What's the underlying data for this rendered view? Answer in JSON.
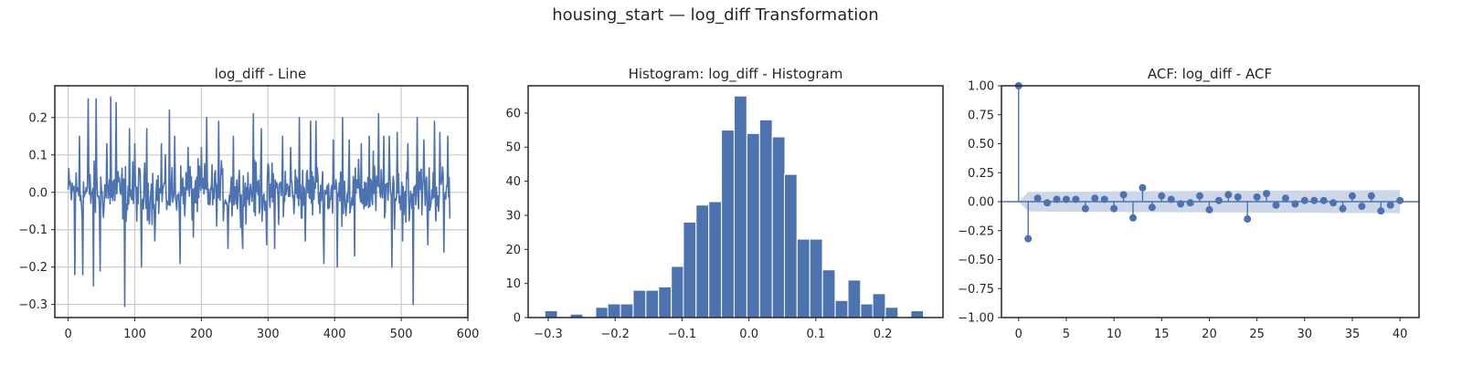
{
  "figure": {
    "title": "housing_start — log_diff Transformation"
  },
  "chart_data": [
    {
      "type": "line",
      "title": "log_diff - Line",
      "xlim": [
        -20,
        600
      ],
      "ylim": [
        -0.335,
        0.285
      ],
      "xticks": [
        0,
        100,
        200,
        300,
        400,
        500,
        600
      ],
      "yticks": [
        -0.3,
        -0.2,
        -0.1,
        0.0,
        0.1,
        0.2
      ],
      "ytick_labels": [
        "−0.3",
        "−0.2",
        "−0.1",
        "0.0",
        "0.1",
        "0.2"
      ],
      "grid": true,
      "series": [
        {
          "color": "#4c72b0",
          "n": 574,
          "spikes": [
            [
              10,
              -0.22
            ],
            [
              17,
              0.15
            ],
            [
              22,
              -0.22
            ],
            [
              30,
              0.25
            ],
            [
              38,
              -0.25
            ],
            [
              42,
              0.25
            ],
            [
              48,
              -0.21
            ],
            [
              58,
              0.13
            ],
            [
              64,
              0.255
            ],
            [
              72,
              0.24
            ],
            [
              85,
              -0.305
            ],
            [
              92,
              0.17
            ],
            [
              100,
              0.13
            ],
            [
              110,
              -0.2
            ],
            [
              118,
              0.17
            ],
            [
              130,
              -0.13
            ],
            [
              140,
              0.13
            ],
            [
              152,
              0.22
            ],
            [
              160,
              0.15
            ],
            [
              168,
              -0.19
            ],
            [
              180,
              0.12
            ],
            [
              188,
              -0.12
            ],
            [
              200,
              0.12
            ],
            [
              208,
              0.2
            ],
            [
              226,
              0.19
            ],
            [
              240,
              -0.15
            ],
            [
              248,
              0.15
            ],
            [
              262,
              -0.15
            ],
            [
              278,
              0.21
            ],
            [
              290,
              0.17
            ],
            [
              298,
              -0.14
            ],
            [
              310,
              -0.15
            ],
            [
              322,
              0.15
            ],
            [
              334,
              0.12
            ],
            [
              347,
              0.2
            ],
            [
              356,
              -0.13
            ],
            [
              364,
              0.19
            ],
            [
              372,
              0.19
            ],
            [
              384,
              -0.19
            ],
            [
              398,
              0.14
            ],
            [
              404,
              -0.2
            ],
            [
              412,
              0.2
            ],
            [
              422,
              0.14
            ],
            [
              430,
              -0.17
            ],
            [
              440,
              0.13
            ],
            [
              452,
              0.15
            ],
            [
              458,
              0.11
            ],
            [
              466,
              0.21
            ],
            [
              474,
              0.15
            ],
            [
              482,
              0.15
            ],
            [
              486,
              -0.2
            ],
            [
              494,
              0.16
            ],
            [
              502,
              -0.13
            ],
            [
              510,
              0.13
            ],
            [
              518,
              -0.3
            ],
            [
              524,
              0.2
            ],
            [
              534,
              0.14
            ],
            [
              540,
              -0.14
            ],
            [
              550,
              0.19
            ],
            [
              558,
              0.16
            ],
            [
              564,
              -0.16
            ],
            [
              570,
              0.15
            ]
          ]
        }
      ]
    },
    {
      "type": "bar",
      "title": "Histogram: log_diff - Histogram",
      "xlim": [
        -0.33,
        0.29
      ],
      "ylim": [
        0,
        68
      ],
      "xticks": [
        -0.3,
        -0.2,
        -0.1,
        0.0,
        0.1,
        0.2
      ],
      "xtick_labels": [
        "−0.3",
        "−0.2",
        "−0.1",
        "0.0",
        "0.1",
        "0.2"
      ],
      "yticks": [
        0,
        10,
        20,
        30,
        40,
        50,
        60
      ],
      "bin_width": 0.0188,
      "bins": [
        [
          -0.305,
          2
        ],
        [
          -0.267,
          1
        ],
        [
          -0.229,
          3
        ],
        [
          -0.211,
          4
        ],
        [
          -0.192,
          4
        ],
        [
          -0.173,
          8
        ],
        [
          -0.154,
          8
        ],
        [
          -0.135,
          9
        ],
        [
          -0.116,
          15
        ],
        [
          -0.098,
          28
        ],
        [
          -0.079,
          33
        ],
        [
          -0.06,
          34
        ],
        [
          -0.041,
          55
        ],
        [
          -0.022,
          65
        ],
        [
          -0.003,
          54
        ],
        [
          0.016,
          58
        ],
        [
          0.035,
          53
        ],
        [
          0.053,
          42
        ],
        [
          0.072,
          23
        ],
        [
          0.091,
          23
        ],
        [
          0.11,
          14
        ],
        [
          0.129,
          5
        ],
        [
          0.148,
          11
        ],
        [
          0.167,
          4
        ],
        [
          0.185,
          7
        ],
        [
          0.204,
          3
        ],
        [
          0.242,
          2
        ]
      ],
      "color": "#4c72b0"
    },
    {
      "type": "scatter",
      "title": "ACF: log_diff - ACF",
      "xlim": [
        -1.8,
        42
      ],
      "ylim": [
        -1.0,
        1.0
      ],
      "xticks": [
        0,
        5,
        10,
        15,
        20,
        25,
        30,
        35,
        40
      ],
      "yticks": [
        -1.0,
        -0.75,
        -0.5,
        -0.25,
        0.0,
        0.25,
        0.5,
        0.75,
        1.0
      ],
      "ytick_labels": [
        "−1.00",
        "−0.75",
        "−0.50",
        "−0.25",
        "0.00",
        "0.25",
        "0.50",
        "0.75",
        "1.00"
      ],
      "confidence_band": [
        [
          0,
          0.0
        ],
        [
          1,
          0.085
        ],
        [
          40,
          0.1
        ]
      ],
      "x": [
        0,
        1,
        2,
        3,
        4,
        5,
        6,
        7,
        8,
        9,
        10,
        11,
        12,
        13,
        14,
        15,
        16,
        17,
        18,
        19,
        20,
        21,
        22,
        23,
        24,
        25,
        26,
        27,
        28,
        29,
        30,
        31,
        32,
        33,
        34,
        35,
        36,
        37,
        38,
        39,
        40
      ],
      "values": [
        1.0,
        -0.32,
        0.03,
        -0.01,
        0.02,
        0.02,
        0.02,
        -0.06,
        0.03,
        0.02,
        -0.06,
        0.06,
        -0.14,
        0.12,
        -0.05,
        0.05,
        0.02,
        -0.02,
        -0.01,
        0.05,
        -0.07,
        0.01,
        0.06,
        0.04,
        -0.15,
        0.04,
        0.07,
        -0.03,
        0.03,
        -0.02,
        0.01,
        0.01,
        0.01,
        -0.01,
        -0.06,
        0.05,
        -0.04,
        0.05,
        -0.08,
        -0.03,
        0.01
      ],
      "color": "#4c72b0",
      "band_color": "#c5d0e6"
    }
  ]
}
